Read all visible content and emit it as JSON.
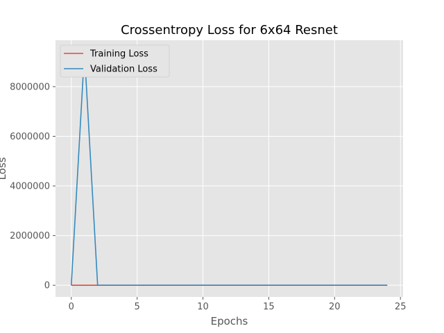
{
  "chart_data": {
    "type": "line",
    "title": "Crossentropy Loss for 6x64 Resnet",
    "xlabel": "Epochs",
    "ylabel": "Loss",
    "xlim": [
      -1.2,
      25.2
    ],
    "ylim": [
      -470000,
      9870000
    ],
    "xticks": [
      0,
      5,
      10,
      15,
      20,
      25
    ],
    "yticks": [
      0,
      2000000,
      4000000,
      6000000,
      8000000
    ],
    "grid": true,
    "legend_position": "top-left",
    "x": [
      0,
      1,
      2,
      3,
      4,
      5,
      6,
      7,
      8,
      9,
      10,
      11,
      12,
      13,
      14,
      15,
      16,
      17,
      18,
      19,
      20,
      21,
      22,
      23,
      24
    ],
    "series": [
      {
        "name": "Training Loss",
        "color": "#E24A33",
        "values": [
          2.4,
          1.6,
          1.3,
          1.2,
          1.1,
          1.05,
          1.0,
          0.98,
          0.96,
          0.94,
          0.92,
          0.9,
          0.89,
          0.88,
          0.87,
          0.86,
          0.85,
          0.84,
          0.83,
          0.82,
          0.81,
          0.8,
          0.8,
          0.79,
          0.79
        ]
      },
      {
        "name": "Validation Loss",
        "color": "#348ABD",
        "values": [
          0,
          9400000,
          0,
          0,
          0,
          0,
          0,
          0,
          0,
          0,
          0,
          0,
          0,
          0,
          0,
          0,
          0,
          0,
          0,
          0,
          0,
          0,
          0,
          0,
          0
        ]
      }
    ]
  }
}
